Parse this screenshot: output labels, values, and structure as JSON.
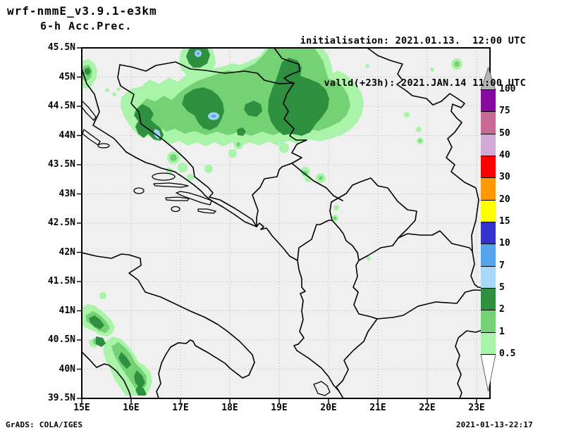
{
  "header": {
    "model": "wrf-nmmE_v3.9.1-e3km",
    "product": "6-h Acc.Prec.",
    "init": "initialisation: 2021.01.13.  12:00 UTC",
    "valid": "valld(+23h): 2021.JAN.14 11:00 UTC"
  },
  "footer": {
    "left": "GrADS: COLA/IGES",
    "right": "2021-01-13-22:17"
  },
  "axes": {
    "lat_labels": [
      "45.5N",
      "45N",
      "44.5N",
      "44N",
      "43.5N",
      "43N",
      "42.5N",
      "42N",
      "41.5N",
      "41N",
      "40.5N",
      "40N",
      "39.5N"
    ],
    "lon_labels": [
      "15E",
      "16E",
      "17E",
      "18E",
      "19E",
      "20E",
      "21E",
      "22E",
      "23E"
    ]
  },
  "legend": {
    "boundary_labels": [
      "100",
      "75",
      "50",
      "40",
      "30",
      "20",
      "15",
      "10",
      "7",
      "5",
      "2",
      "1",
      "0.5"
    ],
    "segment_colors_top_to_bottom": [
      "#870aa0",
      "#c86996",
      "#d2aad6",
      "#fa0000",
      "#ff9900",
      "#ffff00",
      "#3333cc",
      "#55a5ee",
      "#aad8f8",
      "#2e8f3f",
      "#74d274",
      "#aaf4aa"
    ],
    "over_arrow_color": "#b4b4b4",
    "under_arrow_color": "#ffffff"
  },
  "map": {
    "background": "#f0f0f0",
    "precip_colors": {
      "light_green": "#aaf4aa",
      "mid_green": "#74d274",
      "dark_green": "#2e8f3f",
      "light_blue": "#9fd2f5",
      "mid_blue": "#55a5ee"
    }
  },
  "chart_data": {
    "type": "filled-contour-map",
    "title": "wrf-nmmE_v3.9.1-e3km 6-h Acc.Prec.",
    "lon_range_deg_e": [
      15,
      23
    ],
    "lat_range_deg_n": [
      39.5,
      45.5
    ],
    "contour_levels_mm": [
      0.5,
      1,
      2,
      5,
      7,
      10,
      15,
      20,
      30,
      40,
      50,
      75,
      100
    ],
    "max_shaded_level_on_map_mm": 7,
    "summary": "Precipitation band 0.5-7 mm across northern Bosnia and Slavonia (44-45.5N), scattered light cells over central Bosnia, western Serbia, Kosovo border and southern Italy"
  }
}
